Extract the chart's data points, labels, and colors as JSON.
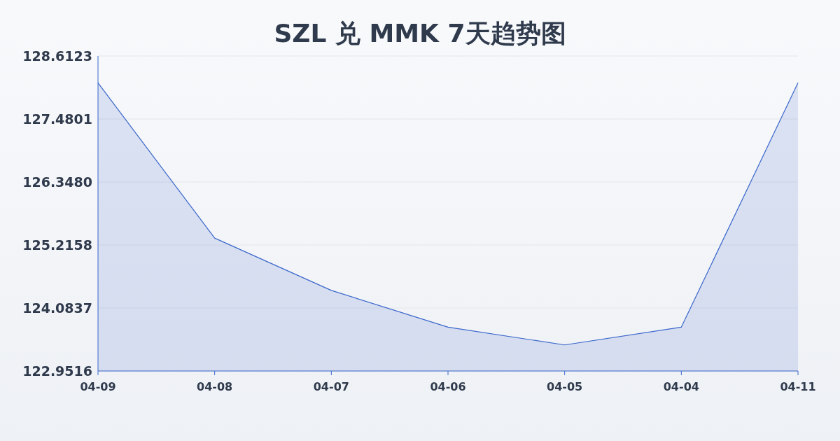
{
  "chart_data": {
    "type": "area",
    "title": "SZL 兑 MMK 7天趋势图",
    "categories": [
      "04-09",
      "04-08",
      "04-07",
      "04-06",
      "04-05",
      "04-04",
      "04-11"
    ],
    "series": [
      {
        "color": "#3a66cc",
        "values": [
          128.13,
          125.34,
          124.4,
          123.74,
          123.42,
          123.74,
          128.13
        ]
      }
    ],
    "ylim": [
      122.9516,
      128.6123
    ],
    "yticks": [
      122.9516,
      124.0837,
      125.2158,
      {
        "value": 126.348,
        "label": "126.3480"
      },
      127.4801,
      128.6123
    ],
    "grid": "y",
    "marker": "none",
    "line_style": "solid"
  }
}
